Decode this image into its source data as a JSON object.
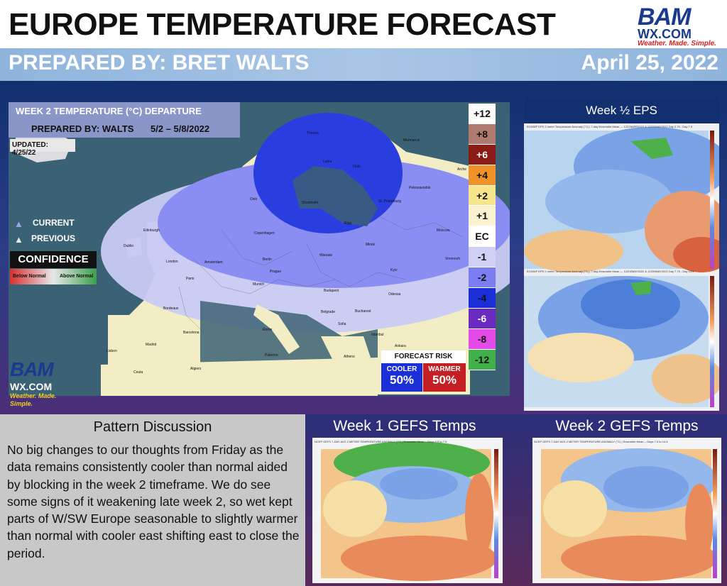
{
  "header": {
    "title": "EUROPE TEMPERATURE FORECAST",
    "prepared_by": "PREPARED BY: BRET WALTS",
    "date": "April 25, 2022"
  },
  "logo": {
    "bam": "BAM",
    "wx": "WX.COM",
    "tagline": "Weather. Made. Simple."
  },
  "main_map": {
    "title": "WEEK 2 TEMPERATURE (°C) DEPARTURE",
    "prepared": "PREPARED BY: WALTS",
    "dates": "5/2 – 5/8/2022",
    "updated": "UPDATED: 4/25/22",
    "legend_current": "CURRENT",
    "legend_previous": "PREVIOUS",
    "confidence": "CONFIDENCE",
    "conf_below": "Below Normal",
    "conf_above": "Above Normal",
    "cities": [
      "Tromso",
      "Murmansk",
      "Lulea",
      "Oulu",
      "Arche",
      "Oslo",
      "Stockholm",
      "St. Petersburg",
      "Petrozavodsk",
      "Edinburgh",
      "Copenhagen",
      "Riga",
      "Moscow",
      "Dublin",
      "London",
      "Amsterdam",
      "Berlin",
      "Warsaw",
      "Minsk",
      "Voronezh",
      "Paris",
      "Prague",
      "Kyiv",
      "Munich",
      "Budapest",
      "Odessa",
      "Bordeaux",
      "Belgrade",
      "Bucharest",
      "Barcelona",
      "Rome",
      "Sofia",
      "Madrid",
      "Istanbul",
      "Ankara",
      "Lisbon",
      "Athens",
      "Palermo",
      "Algiers",
      "Ceuta"
    ]
  },
  "scale": [
    {
      "label": "+12",
      "color": "#ffffff",
      "text": "#111111"
    },
    {
      "label": "+8",
      "color": "#b07a70",
      "text": "#111111"
    },
    {
      "label": "+6",
      "color": "#8a1a14",
      "text": "#ffffff"
    },
    {
      "label": "+4",
      "color": "#f0922a",
      "text": "#111111"
    },
    {
      "label": "+2",
      "color": "#f6e58a",
      "text": "#111111"
    },
    {
      "label": "+1",
      "color": "#fbf3cf",
      "text": "#111111"
    },
    {
      "label": "EC",
      "color": "#ffffff",
      "text": "#111111"
    },
    {
      "label": "-1",
      "color": "#cfd0f4",
      "text": "#111111"
    },
    {
      "label": "-2",
      "color": "#7a7ef0",
      "text": "#111111"
    },
    {
      "label": "-4",
      "color": "#1a2fd8",
      "text": "#111111"
    },
    {
      "label": "-6",
      "color": "#6a2cc0",
      "text": "#ffffff"
    },
    {
      "label": "-8",
      "color": "#e44ae8",
      "text": "#111111"
    },
    {
      "label": "-12",
      "color": "#3fb04a",
      "text": "#111111"
    }
  ],
  "forecast_risk": {
    "title": "FORECAST RISK",
    "cooler_label": "COOLER",
    "cooler_pct": "50%",
    "warmer_label": "WARMER",
    "warmer_pct": "50%"
  },
  "eps": {
    "header": "Week ½ EPS",
    "caption1": "ECMWF EPS 2 meter Temperature Anomaly (°C) | 7-day Ensemble Mean — 12Z25APR2022 & 12Z02MAY2022  Day 0.75 - Day 7.5",
    "caption2": "ECMWF EPS 2 meter Temperature Anomaly (°C) | 7-day Ensemble Mean — 12Z02MAY2022 & 12Z09MAY2022  Day 7.75 - Day 14.5"
  },
  "discussion": {
    "title": "Pattern Discussion",
    "body": "No big changes to our thoughts from Friday as the data remains consistently cooler than normal aided by blocking in the week 2 timeframe. We do see some signs of it weakening late week 2, so wet kept parts of W/SW Europe seasonable to slightly warmer than normal with cooler east shifting east to close the period."
  },
  "gefs": {
    "week1": "Week 1 GEFS Temps",
    "week2": "Week 2 GEFS Temps",
    "caption1": "NCEP GEFS 7-DAY AVG 2 METER TEMPERATURE ANOMALY (°C) | Ensemble Mean -- Days 0.5 to 7.5",
    "caption2": "NCEP GEFS 7-DAY AVG 2 METER TEMPERATURE ANOMALY (°C) | Ensemble Mean -- Days 7.5 to 14.5"
  }
}
